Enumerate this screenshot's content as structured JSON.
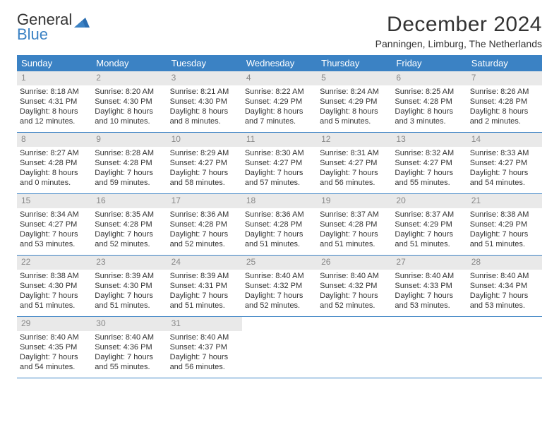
{
  "logo": {
    "line1": "General",
    "line2": "Blue"
  },
  "title": "December 2024",
  "location": "Panningen, Limburg, The Netherlands",
  "colors": {
    "header_bg": "#3b82c4",
    "header_text": "#ffffff",
    "daynum_bg": "#e9e9e9",
    "daynum_text": "#888888",
    "body_text": "#333333",
    "week_border": "#3b82c4",
    "background": "#ffffff"
  },
  "typography": {
    "title_fontsize": 30,
    "location_fontsize": 14,
    "dayhead_fontsize": 13,
    "daynum_fontsize": 12,
    "cell_fontsize": 11
  },
  "calendar": {
    "type": "table",
    "day_headers": [
      "Sunday",
      "Monday",
      "Tuesday",
      "Wednesday",
      "Thursday",
      "Friday",
      "Saturday"
    ],
    "weeks": [
      [
        {
          "n": "1",
          "sunrise": "Sunrise: 8:18 AM",
          "sunset": "Sunset: 4:31 PM",
          "d1": "Daylight: 8 hours",
          "d2": "and 12 minutes."
        },
        {
          "n": "2",
          "sunrise": "Sunrise: 8:20 AM",
          "sunset": "Sunset: 4:30 PM",
          "d1": "Daylight: 8 hours",
          "d2": "and 10 minutes."
        },
        {
          "n": "3",
          "sunrise": "Sunrise: 8:21 AM",
          "sunset": "Sunset: 4:30 PM",
          "d1": "Daylight: 8 hours",
          "d2": "and 8 minutes."
        },
        {
          "n": "4",
          "sunrise": "Sunrise: 8:22 AM",
          "sunset": "Sunset: 4:29 PM",
          "d1": "Daylight: 8 hours",
          "d2": "and 7 minutes."
        },
        {
          "n": "5",
          "sunrise": "Sunrise: 8:24 AM",
          "sunset": "Sunset: 4:29 PM",
          "d1": "Daylight: 8 hours",
          "d2": "and 5 minutes."
        },
        {
          "n": "6",
          "sunrise": "Sunrise: 8:25 AM",
          "sunset": "Sunset: 4:28 PM",
          "d1": "Daylight: 8 hours",
          "d2": "and 3 minutes."
        },
        {
          "n": "7",
          "sunrise": "Sunrise: 8:26 AM",
          "sunset": "Sunset: 4:28 PM",
          "d1": "Daylight: 8 hours",
          "d2": "and 2 minutes."
        }
      ],
      [
        {
          "n": "8",
          "sunrise": "Sunrise: 8:27 AM",
          "sunset": "Sunset: 4:28 PM",
          "d1": "Daylight: 8 hours",
          "d2": "and 0 minutes."
        },
        {
          "n": "9",
          "sunrise": "Sunrise: 8:28 AM",
          "sunset": "Sunset: 4:28 PM",
          "d1": "Daylight: 7 hours",
          "d2": "and 59 minutes."
        },
        {
          "n": "10",
          "sunrise": "Sunrise: 8:29 AM",
          "sunset": "Sunset: 4:27 PM",
          "d1": "Daylight: 7 hours",
          "d2": "and 58 minutes."
        },
        {
          "n": "11",
          "sunrise": "Sunrise: 8:30 AM",
          "sunset": "Sunset: 4:27 PM",
          "d1": "Daylight: 7 hours",
          "d2": "and 57 minutes."
        },
        {
          "n": "12",
          "sunrise": "Sunrise: 8:31 AM",
          "sunset": "Sunset: 4:27 PM",
          "d1": "Daylight: 7 hours",
          "d2": "and 56 minutes."
        },
        {
          "n": "13",
          "sunrise": "Sunrise: 8:32 AM",
          "sunset": "Sunset: 4:27 PM",
          "d1": "Daylight: 7 hours",
          "d2": "and 55 minutes."
        },
        {
          "n": "14",
          "sunrise": "Sunrise: 8:33 AM",
          "sunset": "Sunset: 4:27 PM",
          "d1": "Daylight: 7 hours",
          "d2": "and 54 minutes."
        }
      ],
      [
        {
          "n": "15",
          "sunrise": "Sunrise: 8:34 AM",
          "sunset": "Sunset: 4:27 PM",
          "d1": "Daylight: 7 hours",
          "d2": "and 53 minutes."
        },
        {
          "n": "16",
          "sunrise": "Sunrise: 8:35 AM",
          "sunset": "Sunset: 4:28 PM",
          "d1": "Daylight: 7 hours",
          "d2": "and 52 minutes."
        },
        {
          "n": "17",
          "sunrise": "Sunrise: 8:36 AM",
          "sunset": "Sunset: 4:28 PM",
          "d1": "Daylight: 7 hours",
          "d2": "and 52 minutes."
        },
        {
          "n": "18",
          "sunrise": "Sunrise: 8:36 AM",
          "sunset": "Sunset: 4:28 PM",
          "d1": "Daylight: 7 hours",
          "d2": "and 51 minutes."
        },
        {
          "n": "19",
          "sunrise": "Sunrise: 8:37 AM",
          "sunset": "Sunset: 4:28 PM",
          "d1": "Daylight: 7 hours",
          "d2": "and 51 minutes."
        },
        {
          "n": "20",
          "sunrise": "Sunrise: 8:37 AM",
          "sunset": "Sunset: 4:29 PM",
          "d1": "Daylight: 7 hours",
          "d2": "and 51 minutes."
        },
        {
          "n": "21",
          "sunrise": "Sunrise: 8:38 AM",
          "sunset": "Sunset: 4:29 PM",
          "d1": "Daylight: 7 hours",
          "d2": "and 51 minutes."
        }
      ],
      [
        {
          "n": "22",
          "sunrise": "Sunrise: 8:38 AM",
          "sunset": "Sunset: 4:30 PM",
          "d1": "Daylight: 7 hours",
          "d2": "and 51 minutes."
        },
        {
          "n": "23",
          "sunrise": "Sunrise: 8:39 AM",
          "sunset": "Sunset: 4:30 PM",
          "d1": "Daylight: 7 hours",
          "d2": "and 51 minutes."
        },
        {
          "n": "24",
          "sunrise": "Sunrise: 8:39 AM",
          "sunset": "Sunset: 4:31 PM",
          "d1": "Daylight: 7 hours",
          "d2": "and 51 minutes."
        },
        {
          "n": "25",
          "sunrise": "Sunrise: 8:40 AM",
          "sunset": "Sunset: 4:32 PM",
          "d1": "Daylight: 7 hours",
          "d2": "and 52 minutes."
        },
        {
          "n": "26",
          "sunrise": "Sunrise: 8:40 AM",
          "sunset": "Sunset: 4:32 PM",
          "d1": "Daylight: 7 hours",
          "d2": "and 52 minutes."
        },
        {
          "n": "27",
          "sunrise": "Sunrise: 8:40 AM",
          "sunset": "Sunset: 4:33 PM",
          "d1": "Daylight: 7 hours",
          "d2": "and 53 minutes."
        },
        {
          "n": "28",
          "sunrise": "Sunrise: 8:40 AM",
          "sunset": "Sunset: 4:34 PM",
          "d1": "Daylight: 7 hours",
          "d2": "and 53 minutes."
        }
      ],
      [
        {
          "n": "29",
          "sunrise": "Sunrise: 8:40 AM",
          "sunset": "Sunset: 4:35 PM",
          "d1": "Daylight: 7 hours",
          "d2": "and 54 minutes."
        },
        {
          "n": "30",
          "sunrise": "Sunrise: 8:40 AM",
          "sunset": "Sunset: 4:36 PM",
          "d1": "Daylight: 7 hours",
          "d2": "and 55 minutes."
        },
        {
          "n": "31",
          "sunrise": "Sunrise: 8:40 AM",
          "sunset": "Sunset: 4:37 PM",
          "d1": "Daylight: 7 hours",
          "d2": "and 56 minutes."
        },
        null,
        null,
        null,
        null
      ]
    ]
  }
}
